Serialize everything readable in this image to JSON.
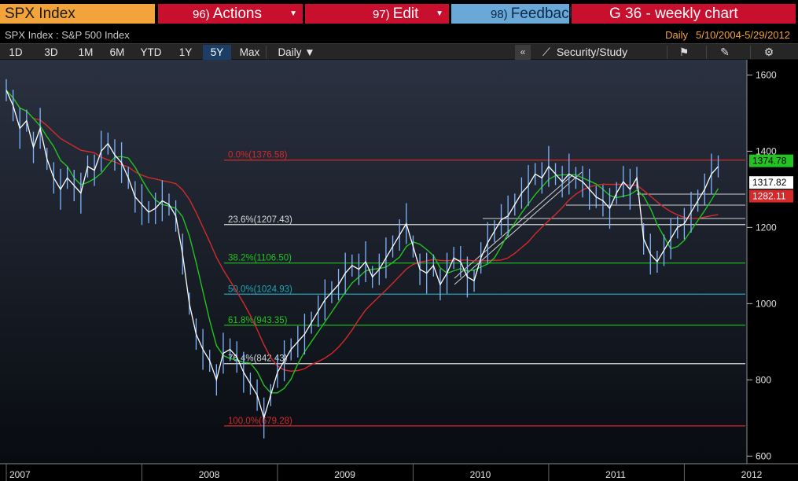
{
  "header": {
    "security": "SPX Index",
    "actions_num": "96)",
    "actions_label": "Actions",
    "edit_num": "97)",
    "edit_label": "Edit",
    "feedback_num": "98)",
    "feedback_label": "Feedback",
    "chart_title": "G 36 - weekly chart"
  },
  "subheader": {
    "description": "SPX Index : S&P 500 Index",
    "frequency": "Daily",
    "date_range": "5/10/2004-5/29/2012"
  },
  "toolbar": {
    "periods": [
      "1D",
      "3D",
      "1M",
      "6M",
      "YTD",
      "1Y",
      "5Y",
      "Max"
    ],
    "active_period": "5Y",
    "interval": "Daily ▼",
    "collapse": "«",
    "study_label": "Security/Study"
  },
  "chart_data": {
    "type": "line",
    "title": "",
    "xlabel": "",
    "ylabel": "",
    "x_ticks": [
      "2007",
      "2008",
      "2009",
      "2010",
      "2011",
      "2012"
    ],
    "y_ticks": [
      600,
      800,
      1000,
      1200,
      1400,
      1600
    ],
    "ylim": [
      580,
      1640
    ],
    "xlim": [
      2007.0,
      2012.45
    ],
    "grid": false,
    "series": [
      {
        "name": "",
        "color": "#ffffff",
        "x": [
          2007.0,
          2007.05,
          2007.1,
          2007.15,
          2007.2,
          2007.25,
          2007.3,
          2007.35,
          2007.4,
          2007.45,
          2007.5,
          2007.55,
          2007.6,
          2007.65,
          2007.7,
          2007.75,
          2007.8,
          2007.85,
          2007.9,
          2007.95,
          2008.0,
          2008.05,
          2008.1,
          2008.15,
          2008.2,
          2008.25,
          2008.3,
          2008.35,
          2008.4,
          2008.45,
          2008.5,
          2008.55,
          2008.6,
          2008.65,
          2008.7,
          2008.75,
          2008.8,
          2008.85,
          2008.9,
          2008.95,
          2009.0,
          2009.05,
          2009.1,
          2009.15,
          2009.2,
          2009.25,
          2009.3,
          2009.35,
          2009.4,
          2009.45,
          2009.5,
          2009.55,
          2009.6,
          2009.65,
          2009.7,
          2009.75,
          2009.8,
          2009.85,
          2009.9,
          2009.95,
          2010.0,
          2010.05,
          2010.1,
          2010.15,
          2010.2,
          2010.25,
          2010.3,
          2010.35,
          2010.4,
          2010.45,
          2010.5,
          2010.55,
          2010.6,
          2010.65,
          2010.7,
          2010.75,
          2010.8,
          2010.85,
          2010.9,
          2010.95,
          2011.0,
          2011.05,
          2011.1,
          2011.15,
          2011.2,
          2011.25,
          2011.3,
          2011.35,
          2011.4,
          2011.45,
          2011.5,
          2011.55,
          2011.6,
          2011.65,
          2011.7,
          2011.75,
          2011.8,
          2011.85,
          2011.9,
          2011.95,
          2012.0,
          2012.05,
          2012.1,
          2012.15,
          2012.2,
          2012.25
        ],
        "y": [
          1560,
          1520,
          1460,
          1480,
          1410,
          1460,
          1380,
          1330,
          1300,
          1330,
          1310,
          1290,
          1360,
          1350,
          1400,
          1420,
          1390,
          1370,
          1330,
          1280,
          1260,
          1240,
          1250,
          1270,
          1260,
          1230,
          1130,
          1000,
          920,
          880,
          850,
          800,
          870,
          880,
          860,
          820,
          790,
          760,
          700,
          760,
          820,
          850,
          880,
          900,
          920,
          950,
          980,
          1010,
          1030,
          1050,
          1080,
          1100,
          1090,
          1110,
          1070,
          1090,
          1120,
          1150,
          1180,
          1210,
          1150,
          1090,
          1080,
          1100,
          1050,
          1080,
          1120,
          1110,
          1070,
          1060,
          1120,
          1160,
          1190,
          1220,
          1230,
          1260,
          1290,
          1310,
          1340,
          1330,
          1360,
          1340,
          1320,
          1340,
          1330,
          1320,
          1300,
          1280,
          1270,
          1250,
          1290,
          1320,
          1300,
          1330,
          1170,
          1130,
          1110,
          1140,
          1170,
          1200,
          1210,
          1240,
          1270,
          1300,
          1340,
          1360
        ]
      }
    ],
    "moving_averages": [
      {
        "name": "",
        "color": "#22c322",
        "label": "1374.78"
      },
      {
        "name": "",
        "color": "#d42a2a",
        "label": "1282.11"
      }
    ],
    "last_price": "1317.82",
    "fibonacci": [
      {
        "label": "0.0%(1376.58)",
        "value": 1376.58,
        "color": "#d42a2a"
      },
      {
        "label": "23.6%(1207.43)",
        "value": 1207.43,
        "color": "#d8d8d8"
      },
      {
        "label": "38.2%(1106.50)",
        "value": 1106.5,
        "color": "#22c322"
      },
      {
        "label": "50.0%(1024.93)",
        "value": 1024.93,
        "color": "#1fa6b8"
      },
      {
        "label": "61.8%(943.35)",
        "value": 943.35,
        "color": "#22c322"
      },
      {
        "label": "76.4%(842.43)",
        "value": 842.43,
        "color": "#d8d8d8"
      },
      {
        "label": "100.0%(679.28)",
        "value": 679.28,
        "color": "#d42a2a"
      }
    ]
  }
}
